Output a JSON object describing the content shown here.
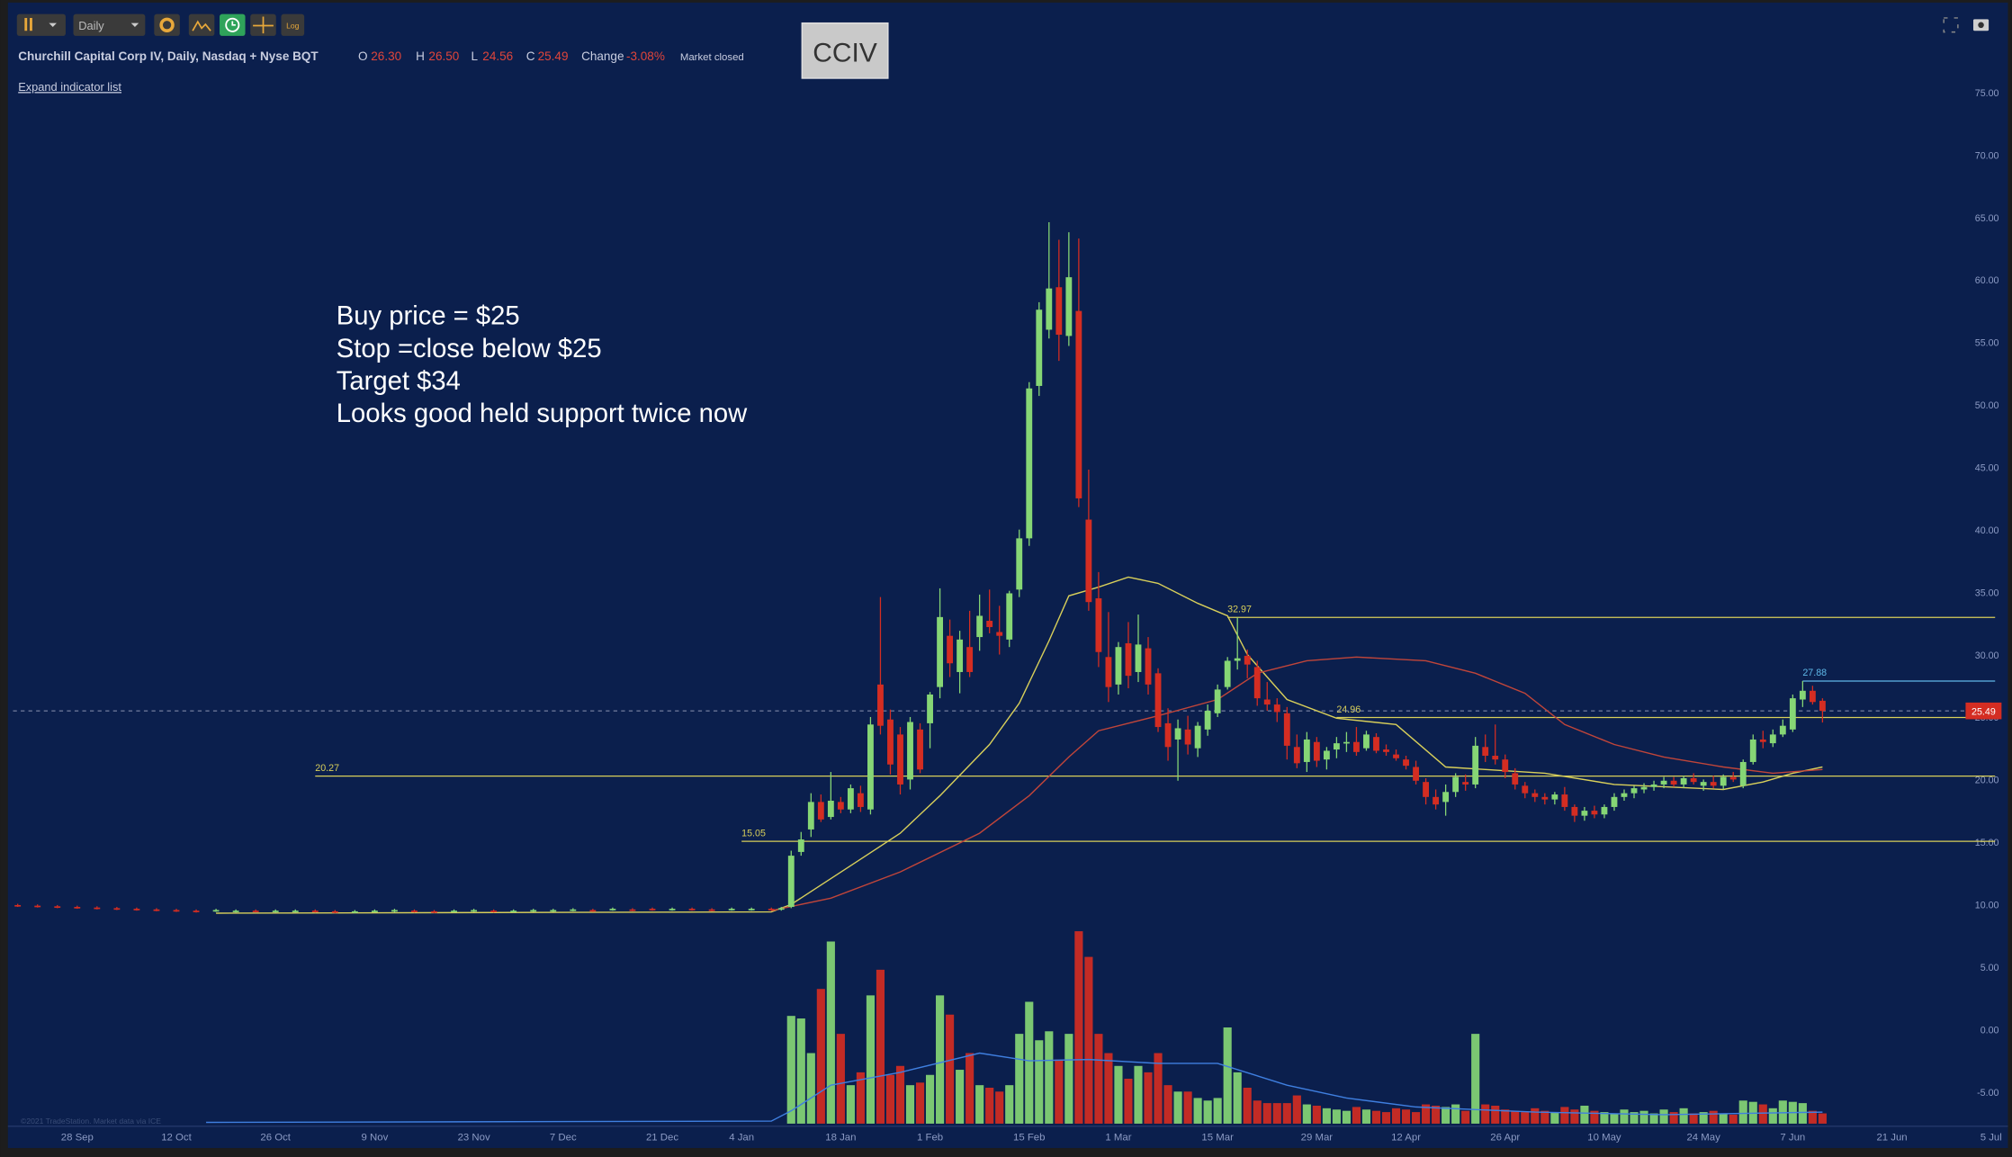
{
  "toolbar": {
    "interval": "Daily",
    "log": "Log"
  },
  "header": {
    "title": "Churchill Capital Corp IV, Daily, Nasdaq + Nyse BQT",
    "open_label": "O",
    "open": "26.30",
    "high_label": "H",
    "high": "26.50",
    "low_label": "L",
    "low": "24.56",
    "close_label": "C",
    "close": "25.49",
    "change_label": "Change",
    "change": "-3.08%",
    "status": "Market closed",
    "expand": "Expand indicator list"
  },
  "symbol_box": "CCIV",
  "watermark": "©2021 TradeStation. Market data via ICE",
  "chart_data": {
    "type": "candlestick",
    "annotation": [
      "Buy price = $25",
      "Stop =close below $25",
      "Target $34",
      "Looks good held support twice now"
    ],
    "xlim": [
      -6.47,
      194.7
    ],
    "ylim": [
      -7.65,
      82.39
    ],
    "xticks": [
      {
        "value": 0,
        "label": "28 Sep"
      },
      {
        "value": 10,
        "label": "12 Oct"
      },
      {
        "value": 20,
        "label": "26 Oct"
      },
      {
        "value": 30,
        "label": "9 Nov"
      },
      {
        "value": 40,
        "label": "23 Nov"
      },
      {
        "value": 49,
        "label": "7 Dec"
      },
      {
        "value": 59,
        "label": "21 Dec"
      },
      {
        "value": 67,
        "label": "4 Jan"
      },
      {
        "value": 77,
        "label": "18 Jan"
      },
      {
        "value": 86,
        "label": "1 Feb"
      },
      {
        "value": 96,
        "label": "15 Feb"
      },
      {
        "value": 105,
        "label": "1 Mar"
      },
      {
        "value": 115,
        "label": "15 Mar"
      },
      {
        "value": 125,
        "label": "29 Mar"
      },
      {
        "value": 134,
        "label": "12 Apr"
      },
      {
        "value": 144,
        "label": "26 Apr"
      },
      {
        "value": 154,
        "label": "10 May"
      },
      {
        "value": 164,
        "label": "24 May"
      },
      {
        "value": 173,
        "label": "7 Jun"
      },
      {
        "value": 183,
        "label": "21 Jun"
      },
      {
        "value": 193,
        "label": "5 Jul"
      }
    ],
    "yticks": [
      {
        "value": 75,
        "label": "75.00"
      },
      {
        "value": 70,
        "label": "70.00"
      },
      {
        "value": 65,
        "label": "65.00"
      },
      {
        "value": 60,
        "label": "60.00"
      },
      {
        "value": 55,
        "label": "55.00"
      },
      {
        "value": 50,
        "label": "50.00"
      },
      {
        "value": 45,
        "label": "45.00"
      },
      {
        "value": 40,
        "label": "40.00"
      },
      {
        "value": 35,
        "label": "35.00"
      },
      {
        "value": 30,
        "label": "30.00"
      },
      {
        "value": 25,
        "label": "25.00"
      },
      {
        "value": 20,
        "label": "20.00"
      },
      {
        "value": 15,
        "label": "15.00"
      },
      {
        "value": 10,
        "label": "10.00"
      },
      {
        "value": 5,
        "label": "5.00"
      },
      {
        "value": 0,
        "label": "0.00"
      },
      {
        "value": -5,
        "label": "-5.00"
      }
    ],
    "up_color": "#86d675",
    "down_color": "#d42d22",
    "candles": {
      "x": [
        -6,
        -4,
        -2,
        0,
        2,
        4,
        6,
        8,
        10,
        12,
        14,
        16,
        18,
        20,
        22,
        24,
        26,
        28,
        30,
        32,
        34,
        36,
        38,
        40,
        42,
        44,
        46,
        48,
        50,
        52,
        54,
        56,
        58,
        60,
        62,
        64,
        66,
        68,
        70,
        71,
        72,
        73,
        74,
        75,
        76,
        77,
        78,
        79,
        80,
        81,
        82,
        83,
        84,
        85,
        86,
        87,
        88,
        89,
        90,
        91,
        92,
        93,
        94,
        95,
        96,
        97,
        98,
        99,
        100,
        101,
        102,
        103,
        104,
        105,
        106,
        107,
        108,
        109,
        110,
        111,
        112,
        113,
        114,
        115,
        116,
        117,
        118,
        119,
        120,
        121,
        122,
        123,
        124,
        125,
        126,
        127,
        128,
        129,
        130,
        131,
        132,
        133,
        134,
        135,
        136,
        137,
        138,
        139,
        140,
        141,
        142,
        143,
        144,
        145,
        146,
        147,
        148,
        149,
        150,
        151,
        152,
        153,
        154,
        155,
        156,
        157,
        158,
        159,
        160,
        161,
        162,
        163,
        164,
        165,
        166,
        167,
        168,
        169,
        170,
        171,
        172,
        173,
        174,
        175,
        176
      ],
      "open": [
        9.95,
        9.9,
        9.85,
        9.8,
        9.75,
        9.7,
        9.65,
        9.6,
        9.55,
        9.5,
        9.5,
        9.45,
        9.5,
        9.45,
        9.45,
        9.5,
        9.45,
        9.4,
        9.45,
        9.45,
        9.5,
        9.45,
        9.45,
        9.5,
        9.5,
        9.45,
        9.5,
        9.5,
        9.55,
        9.55,
        9.6,
        9.6,
        9.65,
        9.6,
        9.65,
        9.6,
        9.6,
        9.6,
        9.65,
        9.6,
        9.8,
        14.2,
        16.0,
        18.2,
        17.0,
        18.2,
        17.6,
        18.9,
        17.6,
        27.6,
        24.8,
        23.6,
        20.0,
        24.0,
        24.5,
        27.4,
        31.5,
        28.6,
        30.6,
        31.4,
        32.7,
        31.8,
        31.2,
        35.2,
        39.3,
        51.5,
        56.0,
        59.4,
        55.5,
        57.5,
        40.8,
        34.5,
        29.8,
        27.6,
        30.9,
        28.6,
        30.5,
        28.5,
        24.5,
        23.2,
        24.0,
        22.5,
        24.0,
        25.3,
        27.4,
        29.5,
        29.9,
        29.0,
        26.4,
        26.0,
        25.3,
        22.6,
        21.4,
        23.0,
        21.6,
        22.4,
        22.9,
        23.0,
        22.5,
        23.4,
        22.4,
        22.0,
        21.6,
        21.0,
        19.8,
        18.6,
        18.2,
        19.0,
        19.8,
        19.6,
        22.6,
        21.9,
        21.6,
        20.5,
        19.5,
        18.9,
        18.6,
        18.4,
        18.8,
        17.8,
        17.1,
        17.5,
        17.2,
        17.8,
        18.6,
        18.9,
        19.2,
        19.4,
        19.6,
        19.9,
        19.6,
        20.1,
        19.5,
        19.8,
        19.5,
        20.2,
        19.5,
        21.4,
        23.2,
        22.9,
        23.6,
        24.0,
        26.4,
        27.1,
        26.3
      ],
      "high": [
        10.05,
        10.0,
        9.95,
        9.9,
        9.85,
        9.8,
        9.75,
        9.7,
        9.65,
        9.6,
        9.65,
        9.6,
        9.6,
        9.6,
        9.6,
        9.6,
        9.55,
        9.55,
        9.6,
        9.65,
        9.6,
        9.55,
        9.6,
        9.65,
        9.6,
        9.6,
        9.65,
        9.65,
        9.7,
        9.65,
        9.75,
        9.7,
        9.75,
        9.75,
        9.75,
        9.7,
        9.75,
        9.75,
        9.75,
        9.8,
        14.3,
        15.8,
        18.9,
        18.8,
        20.6,
        18.6,
        19.6,
        19.5,
        25.0,
        34.6,
        25.6,
        24.2,
        25.0,
        24.5,
        27.0,
        35.3,
        32.8,
        31.9,
        33.5,
        34.8,
        35.2,
        33.9,
        35.1,
        40.0,
        51.8,
        58.2,
        64.6,
        63.2,
        63.8,
        63.3,
        44.8,
        36.6,
        33.4,
        31.0,
        32.6,
        33.2,
        31.4,
        28.9,
        25.7,
        24.8,
        25.1,
        24.6,
        26.0,
        27.6,
        29.8,
        32.97,
        30.4,
        29.5,
        27.8,
        26.5,
        25.8,
        23.6,
        23.8,
        23.4,
        22.6,
        23.4,
        23.8,
        24.2,
        23.9,
        23.7,
        22.8,
        22.4,
        21.9,
        21.5,
        20.1,
        19.2,
        19.6,
        20.5,
        20.4,
        23.4,
        23.6,
        24.4,
        22.0,
        20.9,
        19.8,
        19.2,
        18.9,
        19.0,
        19.4,
        18.0,
        17.8,
        17.9,
        18.0,
        18.9,
        19.2,
        19.5,
        19.7,
        19.9,
        20.2,
        20.2,
        20.3,
        20.5,
        20.0,
        20.3,
        20.4,
        20.6,
        21.6,
        23.6,
        23.9,
        24.0,
        24.8,
        26.8,
        27.88,
        27.5,
        26.5
      ],
      "low": [
        9.8,
        9.75,
        9.7,
        9.65,
        9.6,
        9.55,
        9.5,
        9.45,
        9.4,
        9.35,
        9.4,
        9.35,
        9.35,
        9.35,
        9.35,
        9.35,
        9.3,
        9.3,
        9.35,
        9.35,
        9.35,
        9.3,
        9.35,
        9.4,
        9.35,
        9.35,
        9.4,
        9.4,
        9.45,
        9.4,
        9.5,
        9.45,
        9.5,
        9.5,
        9.5,
        9.45,
        9.5,
        9.5,
        9.5,
        9.5,
        9.7,
        13.9,
        15.4,
        16.6,
        16.8,
        17.3,
        17.3,
        17.4,
        17.2,
        23.6,
        20.4,
        18.8,
        19.2,
        20.5,
        22.5,
        26.5,
        28.2,
        26.9,
        28.2,
        30.3,
        31.7,
        30.0,
        30.6,
        34.6,
        38.7,
        50.7,
        55.3,
        53.5,
        54.7,
        41.8,
        33.5,
        29.0,
        26.2,
        26.8,
        27.3,
        27.8,
        26.8,
        23.8,
        21.5,
        19.9,
        22.0,
        21.8,
        23.5,
        25.0,
        27.2,
        28.8,
        28.1,
        25.9,
        25.5,
        24.6,
        21.6,
        20.9,
        20.6,
        21.0,
        20.8,
        21.7,
        22.2,
        21.9,
        22.3,
        22.1,
        21.9,
        21.5,
        20.8,
        19.6,
        18.0,
        17.6,
        17.1,
        18.6,
        19.1,
        19.3,
        21.4,
        21.2,
        20.1,
        19.2,
        18.5,
        18.2,
        18.0,
        18.0,
        17.5,
        16.6,
        16.7,
        16.9,
        16.9,
        17.5,
        18.3,
        18.5,
        18.9,
        19.1,
        19.3,
        19.4,
        19.3,
        19.6,
        19.1,
        19.3,
        19.2,
        19.8,
        19.3,
        21.2,
        22.5,
        22.6,
        23.4,
        23.8,
        25.8,
        26.0,
        24.56
      ],
      "close": [
        9.9,
        9.85,
        9.8,
        9.75,
        9.7,
        9.65,
        9.6,
        9.55,
        9.5,
        9.45,
        9.55,
        9.5,
        9.45,
        9.5,
        9.5,
        9.45,
        9.4,
        9.45,
        9.5,
        9.55,
        9.45,
        9.4,
        9.5,
        9.55,
        9.45,
        9.5,
        9.55,
        9.55,
        9.6,
        9.5,
        9.65,
        9.55,
        9.6,
        9.65,
        9.6,
        9.55,
        9.65,
        9.65,
        9.6,
        9.7,
        13.9,
        15.2,
        18.2,
        16.8,
        18.3,
        17.6,
        19.3,
        17.8,
        24.4,
        24.3,
        21.2,
        19.6,
        24.6,
        20.8,
        26.8,
        33.0,
        29.3,
        31.2,
        28.6,
        33.1,
        32.2,
        31.5,
        34.9,
        39.3,
        51.3,
        57.6,
        59.3,
        55.6,
        60.2,
        42.5,
        34.2,
        30.2,
        27.4,
        30.6,
        28.3,
        30.8,
        27.6,
        24.2,
        22.6,
        24.1,
        22.8,
        24.3,
        25.5,
        27.2,
        29.5,
        29.7,
        29.2,
        26.5,
        26.0,
        25.4,
        22.7,
        21.3,
        23.2,
        21.5,
        22.3,
        22.9,
        23.0,
        22.2,
        23.6,
        22.3,
        22.2,
        21.7,
        21.1,
        19.9,
        18.6,
        18.0,
        19.0,
        20.2,
        19.6,
        22.7,
        21.9,
        21.6,
        20.6,
        19.6,
        18.9,
        18.6,
        18.4,
        18.8,
        17.8,
        17.1,
        17.5,
        17.2,
        17.8,
        18.6,
        18.9,
        19.3,
        19.4,
        19.6,
        19.9,
        19.6,
        20.1,
        19.8,
        19.8,
        19.5,
        20.2,
        20.0,
        21.4,
        23.2,
        23.0,
        23.6,
        24.3,
        26.5,
        27.1,
        26.2,
        25.49
      ]
    },
    "moving_averages": [
      {
        "color": "#d8cf5a",
        "x": [
          14,
          70,
          72,
          78,
          83,
          87,
          92,
          95,
          98,
          100,
          103,
          106,
          109,
          113,
          116,
          118,
          122,
          127,
          133,
          138,
          142,
          148,
          155,
          166,
          170,
          173,
          176
        ],
        "values": [
          9.3,
          9.4,
          10.0,
          13.1,
          15.7,
          18.7,
          22.8,
          26.1,
          31.1,
          34.7,
          35.4,
          36.2,
          35.7,
          34.1,
          33.1,
          30.0,
          26.4,
          24.9,
          24.4,
          21.0,
          20.8,
          20.5,
          19.6,
          19.2,
          19.8,
          20.5,
          21.0
        ]
      },
      {
        "color": "#c0453a",
        "x": [
          70,
          76,
          83,
          91,
          96,
          100,
          103,
          109,
          115,
          119,
          124,
          129,
          136,
          141,
          146,
          150,
          155,
          160,
          166,
          171,
          176
        ],
        "values": [
          9.5,
          10.5,
          12.6,
          15.7,
          18.7,
          21.8,
          23.9,
          25.1,
          26.4,
          28.5,
          29.5,
          29.8,
          29.5,
          28.5,
          26.9,
          24.4,
          22.8,
          21.8,
          21.0,
          20.5,
          20.8
        ]
      }
    ],
    "volume": {
      "ylim": [
        0,
        600
      ],
      "x": [
        72,
        73,
        74,
        75,
        76,
        77,
        78,
        79,
        80,
        81,
        82,
        83,
        84,
        85,
        86,
        87,
        88,
        89,
        90,
        91,
        92,
        93,
        94,
        95,
        96,
        97,
        98,
        99,
        100,
        101,
        102,
        103,
        104,
        105,
        106,
        107,
        108,
        109,
        110,
        111,
        112,
        113,
        114,
        115,
        116,
        117,
        118,
        119,
        120,
        121,
        122,
        123,
        124,
        125,
        126,
        127,
        128,
        129,
        130,
        131,
        132,
        133,
        134,
        135,
        136,
        137,
        138,
        139,
        140,
        141,
        142,
        143,
        144,
        145,
        146,
        147,
        148,
        149,
        150,
        151,
        152,
        153,
        154,
        155,
        156,
        157,
        158,
        159,
        160,
        161,
        162,
        163,
        164,
        165,
        166,
        167,
        168,
        169,
        170,
        171,
        172,
        173,
        174,
        175,
        176
      ],
      "values": [
        168,
        164,
        110,
        210,
        284,
        140,
        60,
        80,
        200,
        240,
        76,
        90,
        60,
        64,
        76,
        200,
        170,
        84,
        110,
        60,
        56,
        50,
        60,
        140,
        190,
        130,
        144,
        100,
        140,
        300,
        260,
        140,
        110,
        90,
        70,
        90,
        80,
        110,
        60,
        50,
        50,
        40,
        36,
        40,
        150,
        80,
        56,
        36,
        32,
        32,
        32,
        44,
        30,
        28,
        24,
        22,
        20,
        26,
        22,
        20,
        18,
        24,
        22,
        18,
        30,
        28,
        26,
        30,
        20,
        140,
        30,
        28,
        22,
        20,
        18,
        24,
        20,
        18,
        26,
        22,
        28,
        20,
        18,
        16,
        22,
        18,
        20,
        16,
        22,
        18,
        24,
        16,
        18,
        20,
        16,
        14,
        36,
        34,
        30,
        24,
        36,
        34,
        32,
        20,
        16
      ],
      "average": {
        "color": "#3f7fe0",
        "x": [
          13,
          70,
          72,
          76,
          83,
          91,
          96,
          102,
          109,
          115,
          122,
          128,
          135,
          147,
          160,
          176
        ],
        "values": [
          2,
          4,
          20,
          60,
          80,
          110,
          98,
          100,
          94,
          94,
          60,
          40,
          26,
          18,
          14,
          18
        ]
      }
    },
    "levels": [
      {
        "value": 32.97,
        "x": 116,
        "color": "#d8cf5a"
      },
      {
        "value": 24.96,
        "x": 127,
        "color": "#d8cf5a"
      },
      {
        "value": 20.27,
        "x": 24,
        "color": "#d8cf5a"
      },
      {
        "value": 15.05,
        "x": 67,
        "color": "#d8cf5a"
      },
      {
        "value": 27.88,
        "x": 174,
        "color": "#5fb8e8"
      }
    ],
    "last_price": {
      "value": 25.49,
      "color": "#d42d22"
    }
  }
}
